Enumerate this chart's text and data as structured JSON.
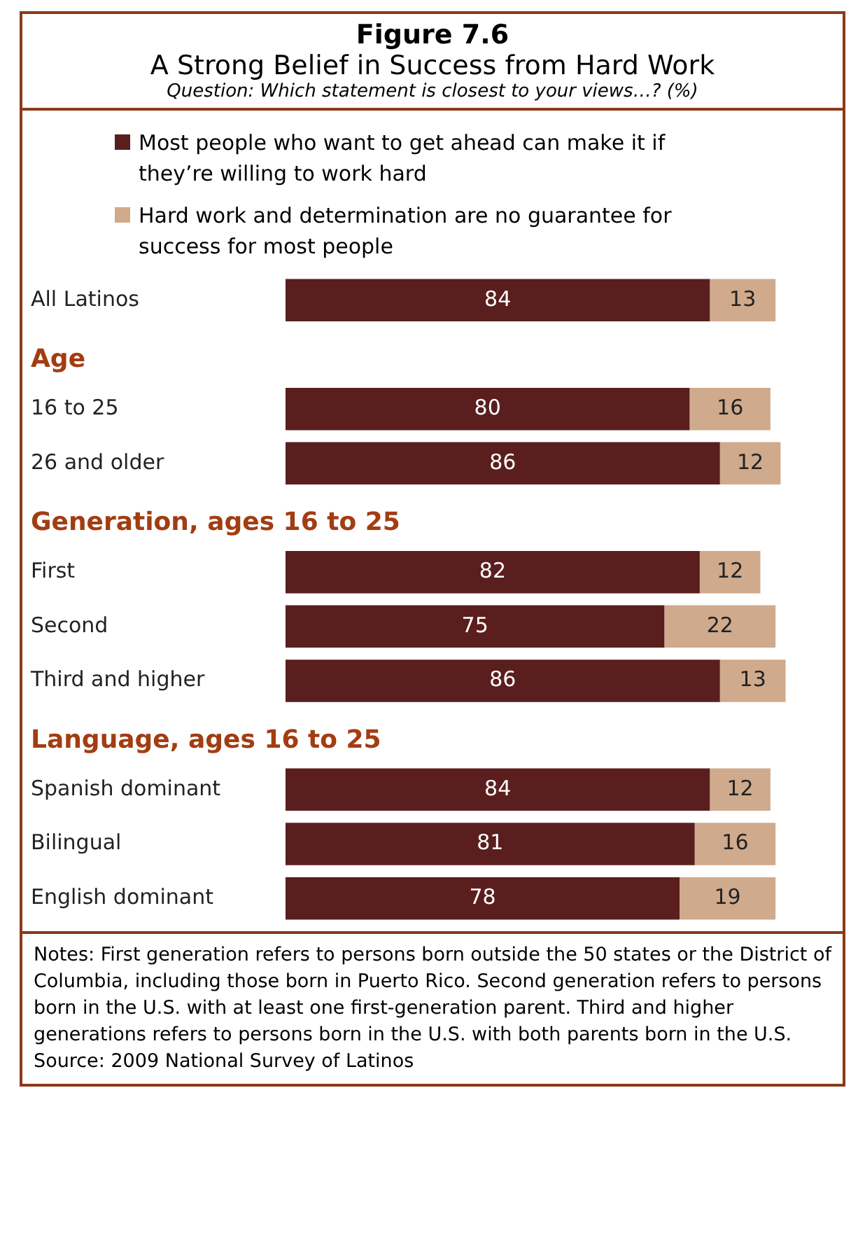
{
  "chart_data": {
    "type": "bar",
    "orientation": "horizontal",
    "stacked": true,
    "title": "Figure 7.6",
    "subtitle": "A Strong Belief in Success from Hard Work",
    "categories": [
      "All Latinos",
      "Age",
      "16 to 25",
      "26 and older",
      "Generation, ages 16 to 25",
      "First",
      "Second",
      "Third and higher",
      "Language, ages 16 to 25",
      "Spanish dominant",
      "Bilingual",
      "English dominant"
    ],
    "series": [
      {
        "name": "Most people who want to get ahead can make it if they’re willing to work hard",
        "color": "#5a1e1e",
        "values": [
          84,
          null,
          80,
          86,
          null,
          82,
          75,
          86,
          null,
          84,
          81,
          78
        ]
      },
      {
        "name": "Hard work and determination are no guarantee for success for most people",
        "color": "#d0aa8c",
        "values": [
          13,
          null,
          16,
          12,
          null,
          12,
          22,
          13,
          null,
          12,
          16,
          19
        ]
      }
    ],
    "data_labels": true,
    "legend": "top",
    "tick_labels": "y",
    "grid": false,
    "annotations": [
      "Question: Which statement is closest to your views…? (%)",
      "Notes: First generation refers to persons born outside the 50 states or the District of Columbia, including those born in Puerto Rico. Second generation refers to persons born in the U.S. with at least one first-generation parent. Third and higher generations refers to persons born in the U.S. with both parents born in the U.S.",
      "Source: 2009 National Survey of Latinos"
    ]
  }
}
